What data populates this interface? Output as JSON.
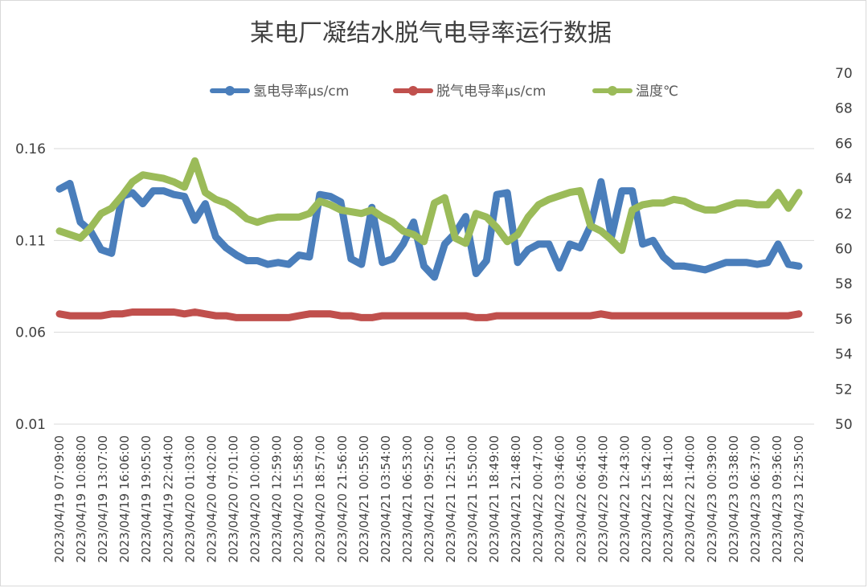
{
  "chart_data": {
    "type": "line",
    "title": "某电厂凝结水脱气电导率运行数据",
    "legend_position": "top",
    "grid": true,
    "y_left": {
      "ylim": [
        0.01,
        0.16
      ],
      "ticks": [
        "0.01",
        "0.06",
        "0.11",
        "0.16"
      ],
      "tick_values": [
        0.01,
        0.06,
        0.11,
        0.16
      ]
    },
    "y_right": {
      "ylim": [
        50,
        70
      ],
      "ticks": [
        "50",
        "52",
        "54",
        "56",
        "58",
        "60",
        "62",
        "64",
        "66",
        "68",
        "70"
      ],
      "tick_values": [
        50,
        52,
        54,
        56,
        58,
        60,
        62,
        64,
        66,
        68,
        70
      ]
    },
    "x_tick_labels": [
      "2023/04/19 07:09:00",
      "2023/04/19 10:08:00",
      "2023/04/19 13:07:00",
      "2023/04/19 16:06:00",
      "2023/04/19 19:05:00",
      "2023/04/19 22:04:00",
      "2023/04/20 01:03:00",
      "2023/04/20 04:02:00",
      "2023/04/20 07:01:00",
      "2023/04/20 10:00:00",
      "2023/04/20 12:59:00",
      "2023/04/20 15:58:00",
      "2023/04/20 18:57:00",
      "2023/04/20 21:56:00",
      "2023/04/21 00:55:00",
      "2023/04/21 03:54:00",
      "2023/04/21 06:53:00",
      "2023/04/21 09:52:00",
      "2023/04/21 12:51:00",
      "2023/04/21 15:50:00",
      "2023/04/21 18:49:00",
      "2023/04/21 21:48:00",
      "2023/04/22 00:47:00",
      "2023/04/22 03:46:00",
      "2023/04/22 06:45:00",
      "2023/04/22 09:44:00",
      "2023/04/22 12:43:00",
      "2023/04/22 15:42:00",
      "2023/04/22 18:41:00",
      "2023/04/22 21:40:00",
      "2023/04/23 00:39:00",
      "2023/04/23 03:38:00",
      "2023/04/23 06:37:00",
      "2023/04/23 09:36:00",
      "2023/04/23 12:35:00"
    ],
    "x_points_per_tick": 2,
    "series": [
      {
        "name": "氢电导率μs/cm",
        "axis": "left",
        "color": "#4a7ebb",
        "values": [
          0.138,
          0.141,
          0.12,
          0.115,
          0.105,
          0.103,
          0.134,
          0.136,
          0.13,
          0.137,
          0.137,
          0.135,
          0.134,
          0.121,
          0.13,
          0.112,
          0.106,
          0.102,
          0.099,
          0.099,
          0.097,
          0.098,
          0.097,
          0.102,
          0.101,
          0.135,
          0.134,
          0.131,
          0.1,
          0.097,
          0.128,
          0.098,
          0.1,
          0.108,
          0.12,
          0.096,
          0.09,
          0.108,
          0.114,
          0.123,
          0.092,
          0.099,
          0.135,
          0.136,
          0.098,
          0.105,
          0.108,
          0.108,
          0.095,
          0.108,
          0.106,
          0.118,
          0.142,
          0.112,
          0.137,
          0.137,
          0.108,
          0.11,
          0.101,
          0.096,
          0.096,
          0.095,
          0.094,
          0.096,
          0.098,
          0.098,
          0.098,
          0.097,
          0.098,
          0.108,
          0.097,
          0.096
        ]
      },
      {
        "name": "脱气电导率μs/cm",
        "axis": "left",
        "color": "#c0504d",
        "values": [
          0.07,
          0.069,
          0.069,
          0.069,
          0.069,
          0.07,
          0.07,
          0.071,
          0.071,
          0.071,
          0.071,
          0.071,
          0.07,
          0.071,
          0.07,
          0.069,
          0.069,
          0.068,
          0.068,
          0.068,
          0.068,
          0.068,
          0.068,
          0.069,
          0.07,
          0.07,
          0.07,
          0.069,
          0.069,
          0.068,
          0.068,
          0.069,
          0.069,
          0.069,
          0.069,
          0.069,
          0.069,
          0.069,
          0.069,
          0.069,
          0.068,
          0.068,
          0.069,
          0.069,
          0.069,
          0.069,
          0.069,
          0.069,
          0.069,
          0.069,
          0.069,
          0.069,
          0.07,
          0.069,
          0.069,
          0.069,
          0.069,
          0.069,
          0.069,
          0.069,
          0.069,
          0.069,
          0.069,
          0.069,
          0.069,
          0.069,
          0.069,
          0.069,
          0.069,
          0.069,
          0.069,
          0.07
        ]
      },
      {
        "name": "温度℃",
        "axis": "right",
        "color": "#9bbb59",
        "values": [
          61.0,
          60.8,
          60.6,
          61.2,
          62.0,
          62.3,
          63.0,
          63.8,
          64.2,
          64.1,
          64.0,
          63.8,
          63.5,
          65.0,
          63.2,
          62.8,
          62.6,
          62.2,
          61.7,
          61.5,
          61.7,
          61.8,
          61.8,
          61.8,
          62.0,
          62.7,
          62.5,
          62.2,
          62.1,
          62.0,
          62.2,
          61.8,
          61.5,
          61.0,
          60.8,
          60.4,
          62.6,
          62.9,
          60.6,
          60.3,
          62.0,
          61.8,
          61.2,
          60.4,
          60.8,
          61.8,
          62.5,
          62.8,
          63.0,
          63.2,
          63.3,
          61.3,
          61.0,
          60.5,
          59.9,
          62.2,
          62.5,
          62.6,
          62.6,
          62.8,
          62.7,
          62.4,
          62.2,
          62.2,
          62.4,
          62.6,
          62.6,
          62.5,
          62.5,
          63.2,
          62.3,
          63.2
        ]
      }
    ]
  }
}
